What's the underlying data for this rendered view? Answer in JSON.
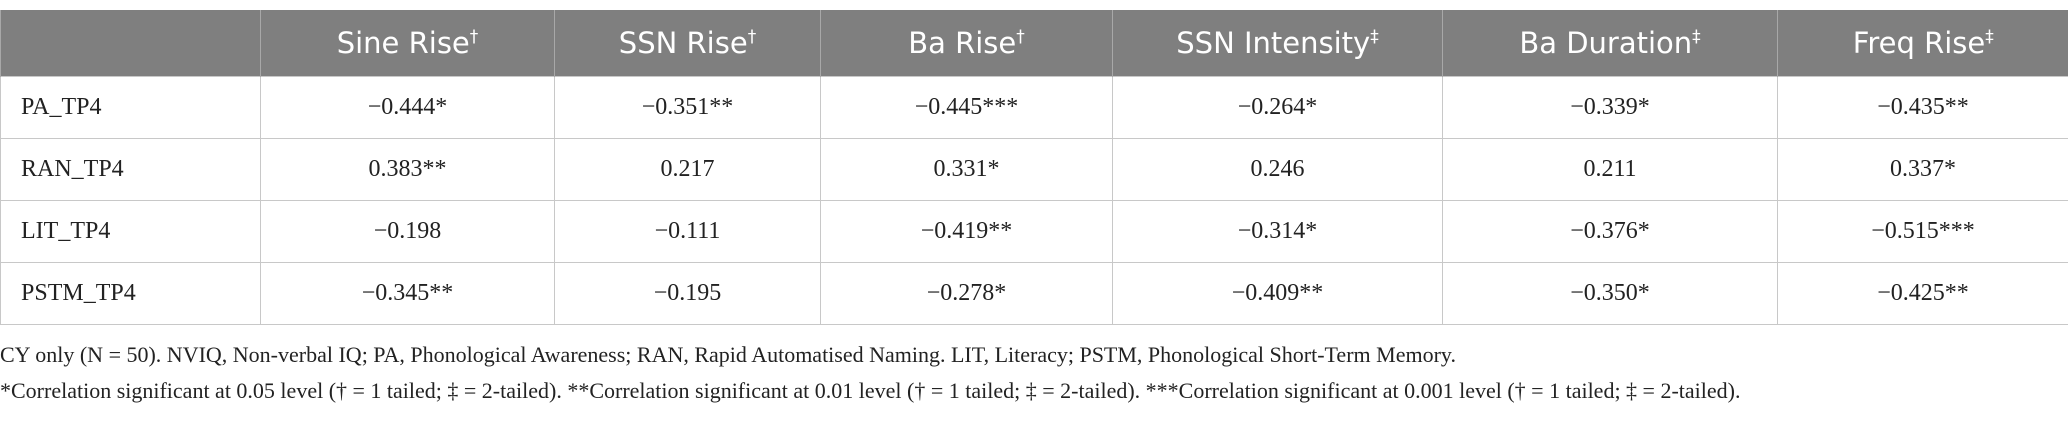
{
  "table": {
    "columns": [
      {
        "label": "Sine Rise",
        "mark": "†"
      },
      {
        "label": "SSN Rise",
        "mark": "†"
      },
      {
        "label": "Ba Rise",
        "mark": "†"
      },
      {
        "label": "SSN Intensity",
        "mark": "‡"
      },
      {
        "label": "Ba Duration",
        "mark": "‡"
      },
      {
        "label": "Freq Rise",
        "mark": "‡"
      }
    ],
    "rows": [
      [
        "PA_TP4",
        "−0.444*",
        "−0.351**",
        "−0.445***",
        "−0.264*",
        "−0.339*",
        "−0.435**"
      ],
      [
        "RAN_TP4",
        "0.383**",
        "0.217",
        "0.331*",
        "0.246",
        "0.211",
        "0.337*"
      ],
      [
        "LIT_TP4",
        "−0.198",
        "−0.111",
        "−0.419**",
        "−0.314*",
        "−0.376*",
        "−0.515***"
      ],
      [
        "PSTM_TP4",
        "−0.345**",
        "−0.195",
        "−0.278*",
        "−0.409**",
        "−0.350*",
        "−0.425**"
      ]
    ]
  },
  "notes": [
    "CY only (N = 50). NVIQ, Non-verbal IQ; PA, Phonological Awareness; RAN, Rapid Automatised Naming. LIT, Literacy; PSTM, Phonological Short-Term Memory.",
    "*Correlation significant at 0.05 level († = 1 tailed; ‡ = 2-tailed). **Correlation significant at 0.01 level († = 1 tailed; ‡ = 2-tailed). ***Correlation significant at 0.001 level († = 1 tailed; ‡ = 2-tailed)."
  ]
}
